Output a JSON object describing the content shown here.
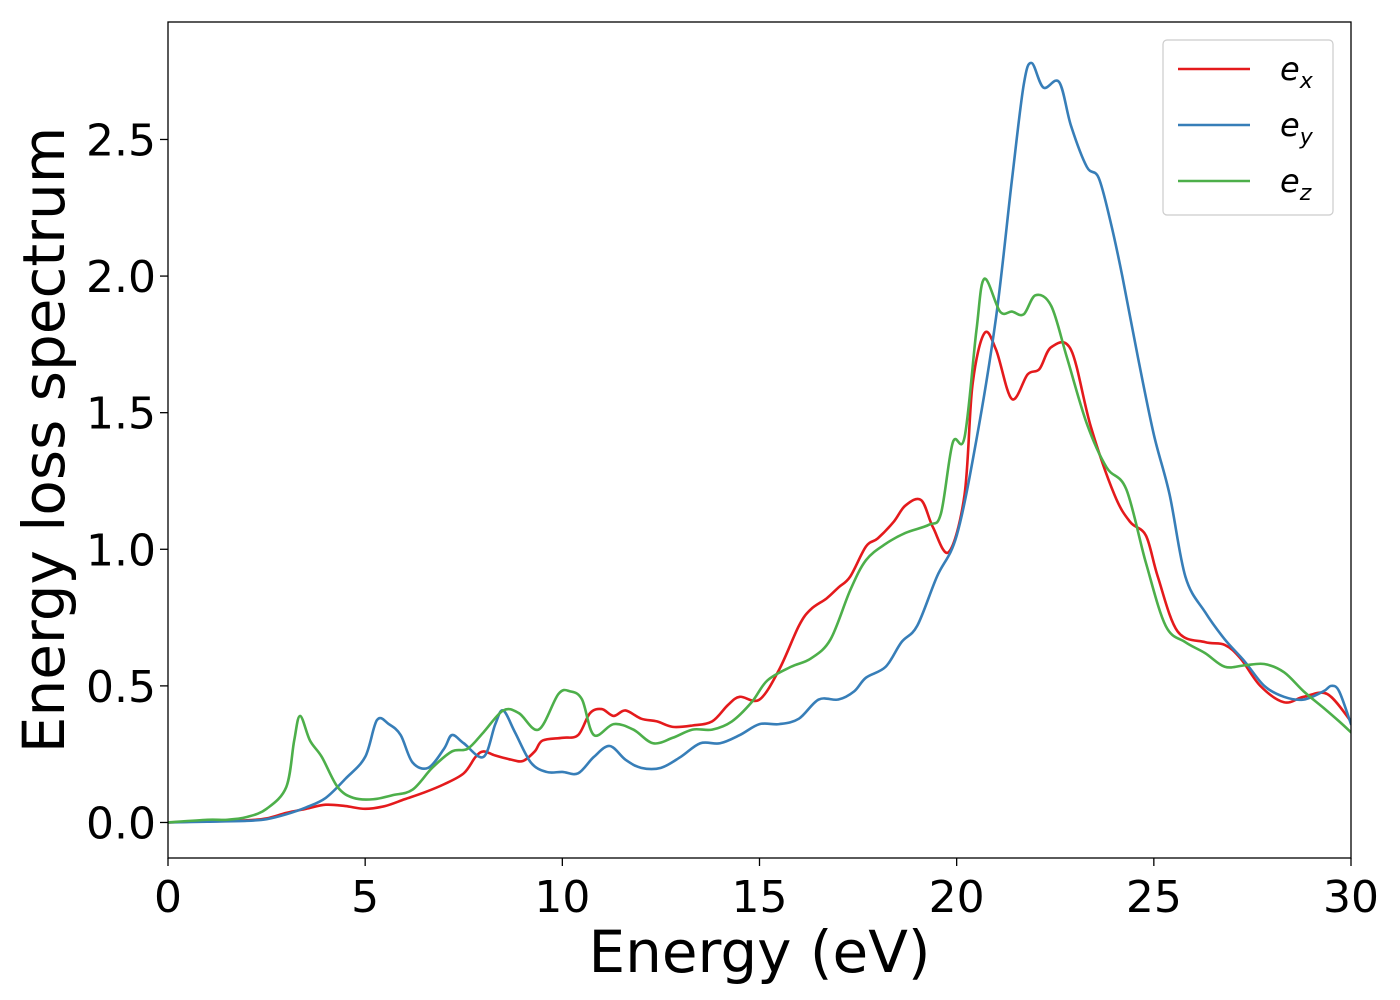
{
  "chart_data": {
    "type": "line",
    "xlabel": "Energy (eV)",
    "ylabel": "Energy loss spectrum",
    "xlim": [
      0,
      30
    ],
    "ylim": [
      -0.13,
      2.93
    ],
    "xticks": [
      0,
      5,
      10,
      15,
      20,
      25,
      30
    ],
    "yticks": [
      0.0,
      0.5,
      1.0,
      1.5,
      2.0,
      2.5
    ],
    "xtick_labels": [
      "0",
      "5",
      "10",
      "15",
      "20",
      "25",
      "30"
    ],
    "ytick_labels": [
      "0.0",
      "0.5",
      "1.0",
      "1.5",
      "2.0",
      "2.5"
    ],
    "grid": false,
    "legend_position": "top-right",
    "series": [
      {
        "name": "e_x",
        "label_base": "e",
        "label_sub": "x",
        "color": "#e41a1c",
        "points": [
          [
            0,
            0
          ],
          [
            1,
            0.005
          ],
          [
            2,
            0.008
          ],
          [
            2.5,
            0.015
          ],
          [
            3,
            0.035
          ],
          [
            3.5,
            0.05
          ],
          [
            4,
            0.065
          ],
          [
            4.5,
            0.06
          ],
          [
            5,
            0.05
          ],
          [
            5.5,
            0.06
          ],
          [
            6,
            0.085
          ],
          [
            6.5,
            0.11
          ],
          [
            7,
            0.14
          ],
          [
            7.5,
            0.18
          ],
          [
            7.8,
            0.24
          ],
          [
            8,
            0.26
          ],
          [
            8.3,
            0.245
          ],
          [
            8.7,
            0.23
          ],
          [
            9,
            0.225
          ],
          [
            9.3,
            0.26
          ],
          [
            9.5,
            0.3
          ],
          [
            10,
            0.31
          ],
          [
            10.4,
            0.32
          ],
          [
            10.7,
            0.4
          ],
          [
            11,
            0.415
          ],
          [
            11.3,
            0.39
          ],
          [
            11.6,
            0.41
          ],
          [
            12,
            0.38
          ],
          [
            12.4,
            0.37
          ],
          [
            12.8,
            0.35
          ],
          [
            13.3,
            0.355
          ],
          [
            13.8,
            0.37
          ],
          [
            14.2,
            0.43
          ],
          [
            14.5,
            0.46
          ],
          [
            15,
            0.45
          ],
          [
            15.5,
            0.56
          ],
          [
            16,
            0.72
          ],
          [
            16.3,
            0.78
          ],
          [
            16.7,
            0.82
          ],
          [
            17,
            0.86
          ],
          [
            17.3,
            0.9
          ],
          [
            17.7,
            1.01
          ],
          [
            18,
            1.04
          ],
          [
            18.4,
            1.1
          ],
          [
            18.7,
            1.16
          ],
          [
            19.1,
            1.18
          ],
          [
            19.4,
            1.08
          ],
          [
            19.8,
            0.99
          ],
          [
            20.2,
            1.2
          ],
          [
            20.4,
            1.6
          ],
          [
            20.7,
            1.79
          ],
          [
            21,
            1.73
          ],
          [
            21.4,
            1.55
          ],
          [
            21.8,
            1.64
          ],
          [
            22.1,
            1.66
          ],
          [
            22.4,
            1.74
          ],
          [
            22.9,
            1.73
          ],
          [
            23.4,
            1.45
          ],
          [
            24,
            1.2
          ],
          [
            24.4,
            1.1
          ],
          [
            24.8,
            1.05
          ],
          [
            25.1,
            0.9
          ],
          [
            25.6,
            0.7
          ],
          [
            26.3,
            0.66
          ],
          [
            26.8,
            0.65
          ],
          [
            27.2,
            0.6
          ],
          [
            27.7,
            0.5
          ],
          [
            28.3,
            0.44
          ],
          [
            28.8,
            0.46
          ],
          [
            29.4,
            0.47
          ],
          [
            30,
            0.37
          ]
        ]
      },
      {
        "name": "e_y",
        "label_base": "e",
        "label_sub": "y",
        "color": "#377eb8",
        "points": [
          [
            0,
            0
          ],
          [
            1,
            0.003
          ],
          [
            2,
            0.006
          ],
          [
            2.5,
            0.012
          ],
          [
            3,
            0.03
          ],
          [
            3.5,
            0.055
          ],
          [
            4,
            0.09
          ],
          [
            4.5,
            0.16
          ],
          [
            5,
            0.24
          ],
          [
            5.3,
            0.375
          ],
          [
            5.6,
            0.36
          ],
          [
            5.9,
            0.32
          ],
          [
            6.2,
            0.22
          ],
          [
            6.6,
            0.2
          ],
          [
            7,
            0.27
          ],
          [
            7.2,
            0.32
          ],
          [
            7.5,
            0.29
          ],
          [
            8,
            0.24
          ],
          [
            8.3,
            0.36
          ],
          [
            8.5,
            0.41
          ],
          [
            8.8,
            0.33
          ],
          [
            9.2,
            0.22
          ],
          [
            9.6,
            0.185
          ],
          [
            10,
            0.185
          ],
          [
            10.4,
            0.18
          ],
          [
            10.8,
            0.24
          ],
          [
            11.2,
            0.28
          ],
          [
            11.6,
            0.23
          ],
          [
            12,
            0.2
          ],
          [
            12.5,
            0.2
          ],
          [
            13,
            0.24
          ],
          [
            13.5,
            0.29
          ],
          [
            14,
            0.29
          ],
          [
            14.5,
            0.32
          ],
          [
            15,
            0.36
          ],
          [
            15.5,
            0.36
          ],
          [
            16,
            0.38
          ],
          [
            16.5,
            0.45
          ],
          [
            17,
            0.45
          ],
          [
            17.4,
            0.48
          ],
          [
            17.7,
            0.53
          ],
          [
            18.2,
            0.57
          ],
          [
            18.6,
            0.66
          ],
          [
            19,
            0.72
          ],
          [
            19.5,
            0.9
          ],
          [
            20,
            1.05
          ],
          [
            20.5,
            1.4
          ],
          [
            21,
            1.85
          ],
          [
            21.4,
            2.35
          ],
          [
            21.7,
            2.7
          ],
          [
            21.9,
            2.78
          ],
          [
            22.2,
            2.69
          ],
          [
            22.6,
            2.71
          ],
          [
            22.9,
            2.55
          ],
          [
            23.3,
            2.4
          ],
          [
            23.6,
            2.36
          ],
          [
            23.9,
            2.2
          ],
          [
            24.2,
            2.0
          ],
          [
            24.6,
            1.7
          ],
          [
            25,
            1.42
          ],
          [
            25.4,
            1.2
          ],
          [
            25.8,
            0.9
          ],
          [
            26.3,
            0.77
          ],
          [
            26.8,
            0.67
          ],
          [
            27.3,
            0.59
          ],
          [
            27.8,
            0.5
          ],
          [
            28.3,
            0.46
          ],
          [
            28.8,
            0.45
          ],
          [
            29.3,
            0.48
          ],
          [
            29.5,
            0.5
          ],
          [
            29.7,
            0.48
          ],
          [
            30,
            0.36
          ]
        ]
      },
      {
        "name": "e_z",
        "label_base": "e",
        "label_sub": "z",
        "color": "#4daf4a",
        "points": [
          [
            0,
            0
          ],
          [
            1,
            0.01
          ],
          [
            1.5,
            0.01
          ],
          [
            2,
            0.02
          ],
          [
            2.5,
            0.05
          ],
          [
            3,
            0.13
          ],
          [
            3.2,
            0.3
          ],
          [
            3.35,
            0.39
          ],
          [
            3.6,
            0.3
          ],
          [
            3.9,
            0.24
          ],
          [
            4.3,
            0.13
          ],
          [
            4.7,
            0.09
          ],
          [
            5.2,
            0.085
          ],
          [
            5.7,
            0.1
          ],
          [
            6.2,
            0.12
          ],
          [
            6.7,
            0.2
          ],
          [
            7.2,
            0.26
          ],
          [
            7.6,
            0.27
          ],
          [
            8,
            0.33
          ],
          [
            8.5,
            0.41
          ],
          [
            8.9,
            0.4
          ],
          [
            9.4,
            0.34
          ],
          [
            9.9,
            0.47
          ],
          [
            10.2,
            0.48
          ],
          [
            10.5,
            0.45
          ],
          [
            10.8,
            0.32
          ],
          [
            11.3,
            0.36
          ],
          [
            11.8,
            0.34
          ],
          [
            12.3,
            0.29
          ],
          [
            12.8,
            0.31
          ],
          [
            13.3,
            0.34
          ],
          [
            13.8,
            0.34
          ],
          [
            14.3,
            0.37
          ],
          [
            14.8,
            0.44
          ],
          [
            15.2,
            0.52
          ],
          [
            15.8,
            0.57
          ],
          [
            16.3,
            0.6
          ],
          [
            16.8,
            0.67
          ],
          [
            17.3,
            0.85
          ],
          [
            17.7,
            0.96
          ],
          [
            18.2,
            1.02
          ],
          [
            18.7,
            1.06
          ],
          [
            19.3,
            1.09
          ],
          [
            19.6,
            1.13
          ],
          [
            19.9,
            1.39
          ],
          [
            20.2,
            1.41
          ],
          [
            20.5,
            1.8
          ],
          [
            20.7,
            1.99
          ],
          [
            21.1,
            1.87
          ],
          [
            21.4,
            1.87
          ],
          [
            21.7,
            1.86
          ],
          [
            22,
            1.93
          ],
          [
            22.4,
            1.89
          ],
          [
            22.8,
            1.7
          ],
          [
            23.3,
            1.46
          ],
          [
            23.8,
            1.3
          ],
          [
            24.3,
            1.22
          ],
          [
            24.8,
            0.95
          ],
          [
            25.3,
            0.72
          ],
          [
            25.8,
            0.66
          ],
          [
            26.3,
            0.62
          ],
          [
            26.8,
            0.57
          ],
          [
            27.3,
            0.575
          ],
          [
            27.8,
            0.58
          ],
          [
            28.3,
            0.55
          ],
          [
            28.8,
            0.48
          ],
          [
            29.3,
            0.42
          ],
          [
            29.7,
            0.37
          ],
          [
            30,
            0.33
          ]
        ]
      }
    ]
  }
}
